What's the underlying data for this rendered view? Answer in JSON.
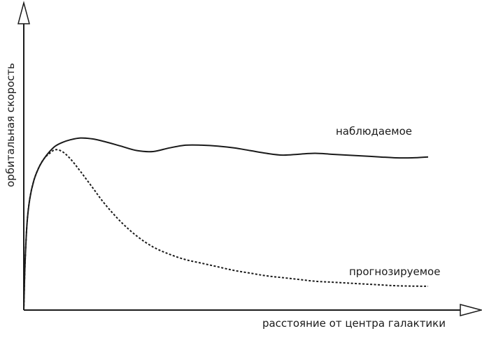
{
  "chart_data": {
    "type": "line",
    "title": "",
    "xlabel": "расстояние от центра галактики",
    "ylabel": "орбитальная скорость",
    "xlim": [
      0,
      100
    ],
    "ylim": [
      0,
      100
    ],
    "grid": false,
    "legend": "none",
    "series": [
      {
        "name": "наблюдаемое",
        "style": "solid",
        "x": [
          0,
          0.3,
          0.8,
          1.5,
          2.5,
          3.7,
          5,
          6.4,
          7.8,
          9.5,
          11.5,
          14,
          17,
          20,
          24,
          28,
          32,
          36,
          40,
          44,
          48,
          52,
          56,
          60,
          64,
          68,
          72,
          76,
          80,
          84,
          88,
          92,
          96,
          100
        ],
        "y": [
          0,
          25,
          48,
          62,
          72,
          79,
          84,
          88,
          91,
          93,
          94.5,
          95.5,
          95,
          93.5,
          91,
          88.5,
          88,
          90,
          91.5,
          91.5,
          91,
          90,
          88.5,
          87,
          86,
          86.5,
          87,
          86.5,
          86,
          85.5,
          85,
          84.5,
          84.5,
          85
        ]
      },
      {
        "name": "прогнозируемое",
        "style": "dashed",
        "x": [
          0,
          0.3,
          0.8,
          1.5,
          2.5,
          3.7,
          5,
          6.4,
          7.8,
          9.5,
          11.5,
          14,
          17,
          20,
          24,
          28,
          32,
          36,
          40,
          44,
          48,
          52,
          56,
          60,
          64,
          68,
          72,
          76,
          80,
          84,
          88,
          92,
          96,
          100
        ],
        "y": [
          0,
          25,
          48,
          62,
          72,
          79,
          84,
          87,
          89,
          88,
          84,
          77,
          68,
          59,
          49,
          41,
          35,
          31,
          28,
          26,
          24,
          22,
          20.5,
          19,
          18,
          17,
          16,
          15.5,
          15,
          14.5,
          14,
          13.5,
          13.3,
          13.2
        ]
      }
    ],
    "annotations": [
      {
        "text": "наблюдаемое",
        "series": 0
      },
      {
        "text": "прогнозируемое",
        "series": 1
      }
    ]
  }
}
